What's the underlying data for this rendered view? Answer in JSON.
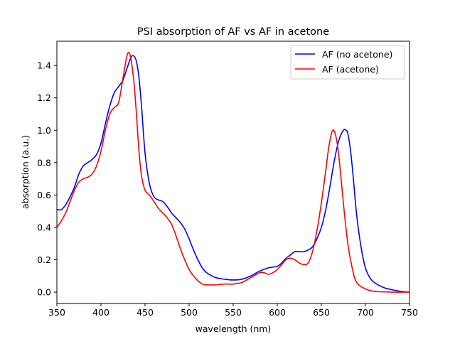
{
  "chart_data": {
    "type": "line",
    "title": "PSI absorption of AF vs AF in acetone",
    "xlabel": "wavelength (nm)",
    "ylabel": "absorption (a.u.)",
    "xlim": [
      350,
      750
    ],
    "ylim": [
      -0.07,
      1.55
    ],
    "xticks": [
      350,
      400,
      450,
      500,
      550,
      600,
      650,
      700,
      750
    ],
    "xtick_labels": [
      "350",
      "400",
      "450",
      "500",
      "550",
      "600",
      "650",
      "700",
      "750"
    ],
    "yticks": [
      0.0,
      0.2,
      0.4,
      0.6,
      0.8,
      1.0,
      1.2,
      1.4
    ],
    "ytick_labels": [
      "0.0",
      "0.2",
      "0.4",
      "0.6",
      "0.8",
      "1.0",
      "1.2",
      "1.4"
    ],
    "grid": false,
    "legend_position": "upper right",
    "series": [
      {
        "name": "AF (no acetone)",
        "color": "#0000ff",
        "x": [
          350,
          355,
          360,
          365,
          370,
          375,
          380,
          385,
          390,
          395,
          400,
          405,
          410,
          415,
          420,
          425,
          430,
          434,
          437,
          440,
          443,
          446,
          450,
          455,
          460,
          465,
          470,
          475,
          480,
          485,
          490,
          495,
          500,
          505,
          510,
          515,
          520,
          530,
          540,
          550,
          560,
          570,
          580,
          590,
          600,
          605,
          610,
          615,
          620,
          625,
          630,
          635,
          640,
          645,
          650,
          655,
          660,
          665,
          670,
          675,
          678,
          680,
          683,
          686,
          690,
          695,
          700,
          705,
          710,
          720,
          730,
          740,
          750
        ],
        "y": [
          0.51,
          0.51,
          0.54,
          0.59,
          0.65,
          0.73,
          0.78,
          0.8,
          0.82,
          0.85,
          0.92,
          1.04,
          1.15,
          1.23,
          1.27,
          1.31,
          1.39,
          1.45,
          1.46,
          1.43,
          1.33,
          1.15,
          0.86,
          0.67,
          0.59,
          0.57,
          0.56,
          0.53,
          0.49,
          0.46,
          0.43,
          0.39,
          0.33,
          0.26,
          0.2,
          0.15,
          0.12,
          0.09,
          0.08,
          0.075,
          0.08,
          0.1,
          0.13,
          0.15,
          0.16,
          0.18,
          0.21,
          0.23,
          0.25,
          0.25,
          0.25,
          0.26,
          0.28,
          0.33,
          0.4,
          0.51,
          0.66,
          0.82,
          0.94,
          1.0,
          1.0,
          0.98,
          0.88,
          0.72,
          0.48,
          0.28,
          0.15,
          0.09,
          0.06,
          0.03,
          0.015,
          0.005,
          0.0
        ]
      },
      {
        "name": "AF (acetone)",
        "color": "#ff0000",
        "x": [
          350,
          355,
          360,
          365,
          370,
          375,
          380,
          385,
          390,
          395,
          400,
          405,
          410,
          415,
          420,
          424,
          428,
          430,
          432,
          434,
          437,
          440,
          443,
          446,
          450,
          455,
          460,
          465,
          470,
          475,
          480,
          485,
          490,
          495,
          500,
          505,
          510,
          515,
          520,
          530,
          540,
          550,
          560,
          570,
          580,
          585,
          590,
          595,
          600,
          605,
          610,
          615,
          620,
          625,
          630,
          635,
          640,
          645,
          650,
          655,
          658,
          661,
          663,
          665,
          668,
          671,
          675,
          680,
          685,
          690,
          700,
          710,
          720,
          730,
          740,
          750
        ],
        "y": [
          0.4,
          0.44,
          0.49,
          0.56,
          0.63,
          0.68,
          0.7,
          0.71,
          0.73,
          0.78,
          0.87,
          1.0,
          1.1,
          1.14,
          1.17,
          1.29,
          1.42,
          1.47,
          1.48,
          1.44,
          1.32,
          1.12,
          0.88,
          0.72,
          0.63,
          0.6,
          0.56,
          0.52,
          0.49,
          0.46,
          0.42,
          0.35,
          0.27,
          0.2,
          0.14,
          0.1,
          0.07,
          0.05,
          0.045,
          0.045,
          0.05,
          0.05,
          0.06,
          0.09,
          0.12,
          0.12,
          0.11,
          0.12,
          0.14,
          0.17,
          0.2,
          0.21,
          0.2,
          0.18,
          0.17,
          0.18,
          0.25,
          0.38,
          0.55,
          0.75,
          0.88,
          0.97,
          1.0,
          0.99,
          0.92,
          0.78,
          0.55,
          0.3,
          0.15,
          0.06,
          0.02,
          0.005,
          0.002,
          0.0,
          0.0,
          0.0
        ]
      }
    ]
  }
}
